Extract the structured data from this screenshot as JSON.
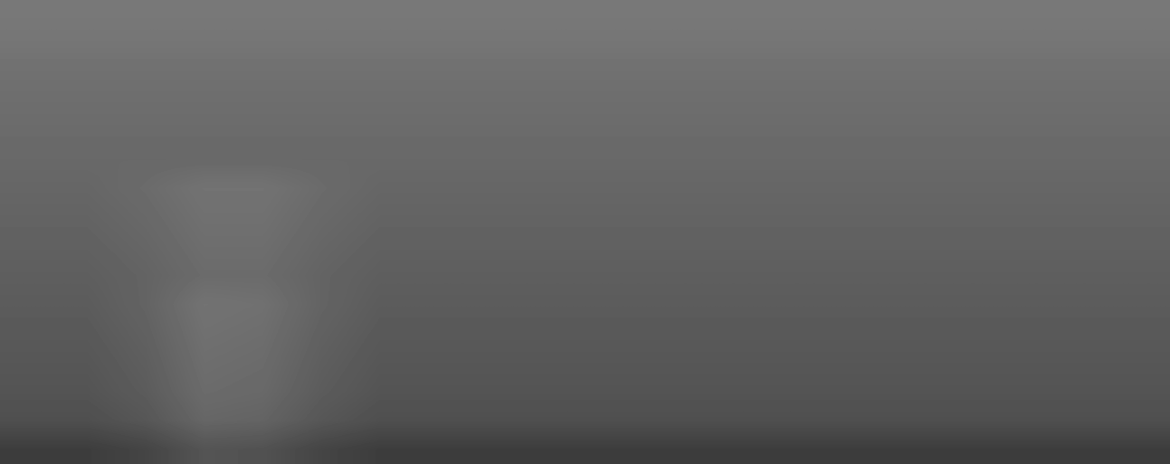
{
  "chart_data": {
    "type": "heatmap",
    "color": "gray",
    "tick_labels": false,
    "range": [
      0,
      1
    ],
    "cells": [
      [
        0.47,
        0.47,
        0.47,
        0.47,
        0.47,
        0.47,
        0.47,
        0.47,
        0.47,
        0.47,
        0.47,
        0.47,
        0.47,
        0.47,
        0.47,
        0.47,
        0.47,
        0.47,
        0.47,
        0.47
      ],
      [
        0.46,
        0.46,
        0.46,
        0.46,
        0.46,
        0.46,
        0.46,
        0.46,
        0.46,
        0.46,
        0.46,
        0.46,
        0.46,
        0.46,
        0.46,
        0.46,
        0.46,
        0.46,
        0.46,
        0.46
      ],
      [
        0.44,
        0.44,
        0.44,
        0.44,
        0.44,
        0.44,
        0.44,
        0.44,
        0.44,
        0.44,
        0.44,
        0.44,
        0.44,
        0.44,
        0.44,
        0.44,
        0.44,
        0.44,
        0.44,
        0.44
      ],
      [
        0.43,
        0.43,
        0.43,
        0.43,
        0.43,
        0.43,
        0.43,
        0.43,
        0.43,
        0.43,
        0.43,
        0.43,
        0.43,
        0.43,
        0.43,
        0.43,
        0.43,
        0.43,
        0.43,
        0.43
      ],
      [
        0.42,
        0.42,
        0.42,
        0.42,
        0.42,
        0.42,
        0.42,
        0.42,
        0.42,
        0.42,
        0.42,
        0.42,
        0.42,
        0.42,
        0.42,
        0.42,
        0.42,
        0.42,
        0.42,
        0.42
      ],
      [
        0.41,
        0.41,
        0.41,
        0.41,
        0.41,
        0.41,
        0.41,
        0.41,
        0.41,
        0.41,
        0.41,
        0.41,
        0.41,
        0.41,
        0.41,
        0.41,
        0.41,
        0.41,
        0.41,
        0.41
      ],
      [
        0.4,
        0.4,
        0.42,
        0.45,
        0.45,
        0.42,
        0.4,
        0.4,
        0.4,
        0.4,
        0.4,
        0.4,
        0.4,
        0.4,
        0.4,
        0.4,
        0.4,
        0.4,
        0.4,
        0.4
      ],
      [
        0.39,
        0.39,
        0.41,
        0.44,
        0.44,
        0.41,
        0.39,
        0.39,
        0.39,
        0.39,
        0.39,
        0.39,
        0.39,
        0.39,
        0.39,
        0.39,
        0.39,
        0.39,
        0.39,
        0.39
      ],
      [
        0.38,
        0.38,
        0.4,
        0.43,
        0.43,
        0.4,
        0.38,
        0.38,
        0.38,
        0.38,
        0.38,
        0.38,
        0.38,
        0.38,
        0.38,
        0.38,
        0.38,
        0.38,
        0.38,
        0.38
      ],
      [
        0.37,
        0.37,
        0.39,
        0.42,
        0.42,
        0.39,
        0.37,
        0.37,
        0.37,
        0.37,
        0.37,
        0.37,
        0.37,
        0.37,
        0.37,
        0.37,
        0.37,
        0.37,
        0.37,
        0.37
      ],
      [
        0.36,
        0.36,
        0.39,
        0.45,
        0.44,
        0.39,
        0.36,
        0.36,
        0.36,
        0.36,
        0.36,
        0.36,
        0.36,
        0.36,
        0.36,
        0.36,
        0.36,
        0.36,
        0.36,
        0.36
      ],
      [
        0.35,
        0.35,
        0.38,
        0.44,
        0.43,
        0.38,
        0.35,
        0.35,
        0.35,
        0.35,
        0.35,
        0.35,
        0.35,
        0.35,
        0.35,
        0.35,
        0.35,
        0.35,
        0.35,
        0.35
      ],
      [
        0.34,
        0.34,
        0.37,
        0.43,
        0.42,
        0.37,
        0.34,
        0.34,
        0.34,
        0.34,
        0.34,
        0.34,
        0.34,
        0.34,
        0.34,
        0.34,
        0.34,
        0.34,
        0.34,
        0.34
      ],
      [
        0.33,
        0.33,
        0.36,
        0.42,
        0.41,
        0.36,
        0.33,
        0.33,
        0.33,
        0.33,
        0.33,
        0.33,
        0.33,
        0.33,
        0.33,
        0.33,
        0.33,
        0.33,
        0.33,
        0.33
      ],
      [
        0.31,
        0.31,
        0.34,
        0.4,
        0.39,
        0.34,
        0.31,
        0.31,
        0.31,
        0.31,
        0.31,
        0.31,
        0.31,
        0.31,
        0.31,
        0.31,
        0.31,
        0.31,
        0.31,
        0.31
      ],
      [
        0.24,
        0.24,
        0.27,
        0.33,
        0.32,
        0.27,
        0.24,
        0.24,
        0.24,
        0.24,
        0.24,
        0.24,
        0.24,
        0.24,
        0.24,
        0.24,
        0.24,
        0.24,
        0.24,
        0.24
      ]
    ]
  }
}
